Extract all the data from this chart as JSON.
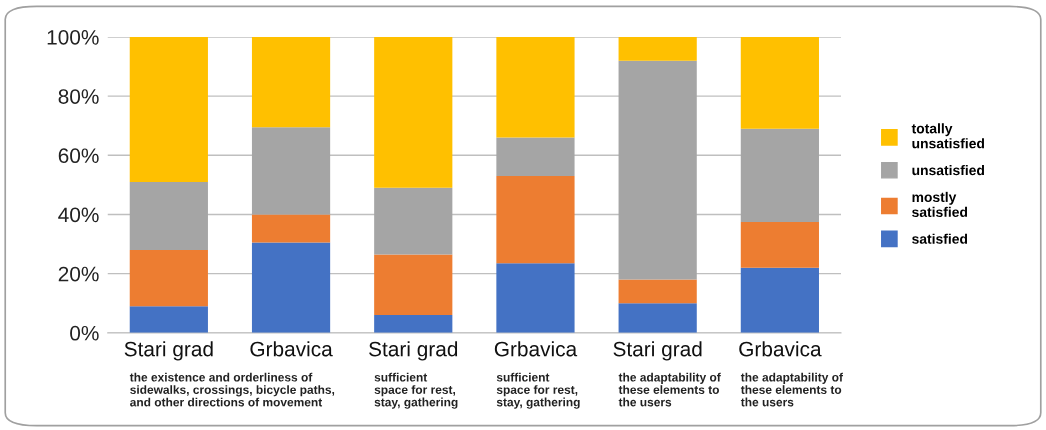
{
  "chart_data": {
    "type": "bar",
    "stacked": true,
    "categories": [
      "Stari grad",
      "Grbavica",
      "Stari grad",
      "Grbavica",
      "Stari grad",
      "Grbavica"
    ],
    "series": [
      {
        "name": "satisfied",
        "color": "#4472c4",
        "values": [
          9,
          30.5,
          6,
          23.5,
          10,
          22
        ]
      },
      {
        "name": "mostly\nsatisfied",
        "color": "#ed7d31",
        "values": [
          19,
          9.5,
          20.5,
          29.5,
          8,
          15.5
        ]
      },
      {
        "name": "unsatisfied",
        "color": "#a5a5a5",
        "values": [
          23,
          29.5,
          22.5,
          13,
          74,
          31.5
        ]
      },
      {
        "name": "totally\nunsatisfied",
        "color": "#ffc000",
        "values": [
          49,
          30.5,
          51,
          34,
          8,
          31
        ]
      }
    ],
    "ylim": [
      0,
      100
    ],
    "yticks": [
      {
        "value": 0,
        "label": "0%"
      },
      {
        "value": 20,
        "label": "20%"
      },
      {
        "value": 40,
        "label": "40%"
      },
      {
        "value": 60,
        "label": "60%"
      },
      {
        "value": 80,
        "label": "80%"
      },
      {
        "value": 100,
        "label": "100%"
      }
    ],
    "grid": "y",
    "legend": "right",
    "annotations": [
      "the existence and orderliness of\nsidewalks, crossings, bicycle paths,\nand other directions of movement",
      "sufficient\nspace for rest,\nstay, gathering",
      "sufficient\nspace for rest,\nstay, gathering",
      "the adaptability of\nthese elements to\nthe users",
      "the adaptability of\nthese elements to\nthe users"
    ]
  }
}
